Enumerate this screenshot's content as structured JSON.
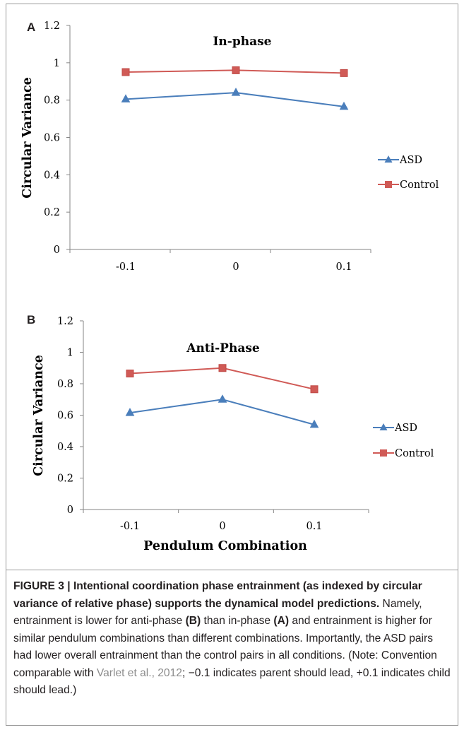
{
  "colors": {
    "asd": "#4a7ebb",
    "control": "#d05a56",
    "axis": "#868686",
    "text": "#000000"
  },
  "chart_data": [
    {
      "panel_label": "A",
      "type": "line",
      "title": "In-phase",
      "ylabel": "Circular Variance",
      "xlabel": "",
      "categories": [
        "-0.1",
        "0",
        "0.1"
      ],
      "y_ticks": [
        "0",
        "0.2",
        "0.4",
        "0.6",
        "0.8",
        "1",
        "1.2"
      ],
      "ylim": [
        0,
        1.2
      ],
      "legend_position": "right",
      "series": [
        {
          "name": "ASD",
          "values": [
            0.805,
            0.84,
            0.765
          ],
          "marker": "triangle",
          "color": "#4a7ebb"
        },
        {
          "name": "Control",
          "values": [
            0.95,
            0.96,
            0.945
          ],
          "marker": "square",
          "color": "#d05a56"
        }
      ]
    },
    {
      "panel_label": "B",
      "type": "line",
      "title": "Anti-Phase",
      "ylabel": "Circular Variance",
      "xlabel": "Pendulum Combination",
      "categories": [
        "-0.1",
        "0",
        "0.1"
      ],
      "y_ticks": [
        "0",
        "0.2",
        "0.4",
        "0.6",
        "0.8",
        "1",
        "1.2"
      ],
      "ylim": [
        0,
        1.2
      ],
      "legend_position": "right",
      "series": [
        {
          "name": "ASD",
          "values": [
            0.615,
            0.7,
            0.54
          ],
          "marker": "triangle",
          "color": "#4a7ebb"
        },
        {
          "name": "Control",
          "values": [
            0.865,
            0.9,
            0.765
          ],
          "marker": "square",
          "color": "#d05a56"
        }
      ]
    }
  ],
  "caption": {
    "figure_label": "FIGURE 3 | Intentional coordination phase entrainment (as indexed by circular variance of relative phase) supports the dynamical model predictions.",
    "part1": " Namely, entrainment is lower for anti-phase ",
    "ref_b": "(B)",
    "part2": " than in-phase ",
    "ref_a": "(A)",
    "part3": " and entrainment is higher for similar pendulum combinations than different combinations. Importantly, the ASD pairs had lower overall entrainment than the control pairs in all conditions. (Note: Convention comparable with ",
    "citation": "Varlet et al., 2012",
    "part4": "; −0.1 indicates parent should lead, +0.1 indicates child should lead.)"
  }
}
